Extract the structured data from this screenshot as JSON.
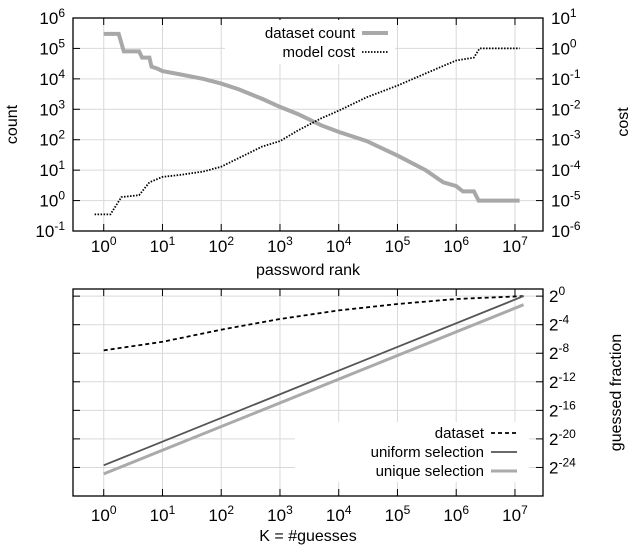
{
  "chart_data": [
    {
      "type": "scatter",
      "xlabel": "password rank",
      "ylabel": "count",
      "y2label": "cost",
      "xscale": "log",
      "yscale": "log",
      "y2scale": "log",
      "xlim": [
        0.3,
        30000000
      ],
      "ylim": [
        0.1,
        1000000
      ],
      "y2lim": [
        1e-06,
        10
      ],
      "x_ticks": [
        "10^0",
        "10^1",
        "10^2",
        "10^3",
        "10^4",
        "10^5",
        "10^6",
        "10^7"
      ],
      "y_ticks": [
        "10^-1",
        "10^0",
        "10^1",
        "10^2",
        "10^3",
        "10^4",
        "10^5",
        "10^6"
      ],
      "y2_ticks": [
        "10^-6",
        "10^-5",
        "10^-4",
        "10^-3",
        "10^-2",
        "10^-1",
        "10^0",
        "10^1"
      ],
      "legend_position": "top-center",
      "grid": true,
      "series": [
        {
          "name": "dataset count",
          "axis": "left",
          "style": "thick-gray-steps",
          "color": "#a8a8a8",
          "points": [
            [
              1,
              300000
            ],
            [
              1.8,
              300000
            ],
            [
              2.2,
              80000
            ],
            [
              4,
              80000
            ],
            [
              4.5,
              50000
            ],
            [
              6,
              50000
            ],
            [
              6.5,
              25000
            ],
            [
              8,
              22000
            ],
            [
              10,
              18000
            ],
            [
              20,
              14000
            ],
            [
              50,
              10000
            ],
            [
              100,
              7000
            ],
            [
              200,
              4500
            ],
            [
              500,
              2200
            ],
            [
              1000,
              1200
            ],
            [
              2000,
              700
            ],
            [
              5000,
              300
            ],
            [
              10000,
              180
            ],
            [
              30000,
              90
            ],
            [
              100000,
              30
            ],
            [
              300000,
              10
            ],
            [
              600000,
              4
            ],
            [
              1000000,
              3
            ],
            [
              1300000,
              2
            ],
            [
              2000000,
              2
            ],
            [
              2400000,
              1
            ],
            [
              12000000,
              1
            ]
          ]
        },
        {
          "name": "model cost",
          "axis": "right",
          "style": "black-dots",
          "color": "#000000",
          "points": [
            [
              0.7,
              3.5e-06
            ],
            [
              1.3,
              3.5e-06
            ],
            [
              2,
              1.3e-05
            ],
            [
              4,
              1.5e-05
            ],
            [
              6,
              4e-05
            ],
            [
              10,
              6e-05
            ],
            [
              20,
              7e-05
            ],
            [
              50,
              9e-05
            ],
            [
              100,
              0.00013
            ],
            [
              200,
              0.00025
            ],
            [
              500,
              0.0006
            ],
            [
              1000,
              0.0009
            ],
            [
              2000,
              0.002
            ],
            [
              5000,
              0.005
            ],
            [
              10000,
              0.009
            ],
            [
              30000,
              0.025
            ],
            [
              100000,
              0.06
            ],
            [
              300000,
              0.15
            ],
            [
              700000,
              0.3
            ],
            [
              1000000,
              0.4
            ],
            [
              2000000,
              0.5
            ],
            [
              2500000,
              1
            ],
            [
              12000000,
              1
            ]
          ]
        }
      ]
    },
    {
      "type": "line",
      "xlabel": "K = #guesses",
      "ylabel": "guessed fraction",
      "xscale": "log",
      "yscale": "log2",
      "xlim": [
        0.3,
        30000000
      ],
      "ylim_log2": [
        -28,
        1
      ],
      "x_ticks": [
        "10^0",
        "10^1",
        "10^2",
        "10^3",
        "10^4",
        "10^5",
        "10^6",
        "10^7"
      ],
      "y_ticks": [
        "2^0",
        "2^-4",
        "2^-8",
        "2^-12",
        "2^-16",
        "2^-20",
        "2^-24"
      ],
      "legend_position": "bottom-right",
      "grid": true,
      "series": [
        {
          "name": "dataset",
          "style": "dashed",
          "color": "#000000",
          "points_log2": [
            [
              1,
              -7.6
            ],
            [
              10,
              -6.4
            ],
            [
              100,
              -4.7
            ],
            [
              1000,
              -3.2
            ],
            [
              10000,
              -2.0
            ],
            [
              100000,
              -1.1
            ],
            [
              1000000,
              -0.4
            ],
            [
              14000000,
              0
            ]
          ]
        },
        {
          "name": "uniform selection",
          "style": "solid",
          "color": "#555555",
          "points_log2": [
            [
              1,
              -23.7
            ],
            [
              14000000,
              0
            ]
          ]
        },
        {
          "name": "unique selection",
          "style": "solid-thick",
          "color": "#aaaaaa",
          "points_log2": [
            [
              1,
              -24.9
            ],
            [
              14000000,
              -1.2
            ]
          ]
        }
      ]
    }
  ]
}
